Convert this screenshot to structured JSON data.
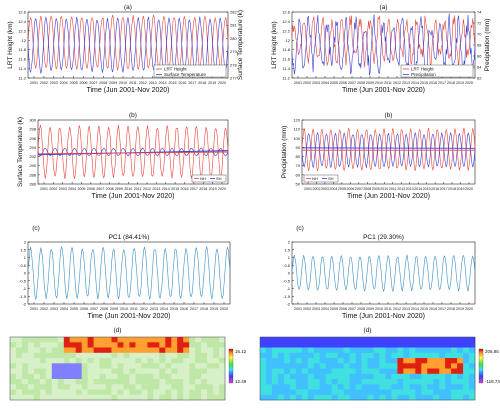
{
  "chart_data": [
    {
      "panel": "(a)",
      "type": "line",
      "title": "(a)",
      "xlabel": "Time (Jun 2001-Nov 2020)",
      "ylabel": "LRT Height (km)",
      "ylabel_right": "Surface Temperature (k)",
      "x_ticks": [
        "2001",
        "2002",
        "2003",
        "2004",
        "2005",
        "2006",
        "2007",
        "2008",
        "2009",
        "2010",
        "2011",
        "2012",
        "2013",
        "2014",
        "2015",
        "2016",
        "2017",
        "2018",
        "2019",
        "2020"
      ],
      "ylim": [
        11.2,
        12.6
      ],
      "y_ticks": [
        "11.2",
        "11.4",
        "11.6",
        "11.8",
        "12",
        "12.2",
        "12.4",
        "12.6"
      ],
      "ylim_right": [
        277,
        282
      ],
      "y_ticks_right": [
        "277",
        "278",
        "279",
        "280",
        "281",
        "282"
      ],
      "legend": [
        "LRT Height",
        "Surface Temperature"
      ],
      "legend_position": "bottom-right",
      "series": [
        {
          "name": "LRT Height",
          "color": "#e8443a",
          "axis": "left",
          "pattern": "annual cycle",
          "mean": 11.95,
          "amplitude": 0.55
        },
        {
          "name": "Surface Temperature",
          "color": "#3b3bd6",
          "axis": "right",
          "pattern": "annual cycle",
          "mean": 279.5,
          "amplitude": 2.0
        }
      ]
    },
    {
      "panel": "(a)",
      "type": "line",
      "title": "(a)",
      "xlabel": "Time (Jun 2001-Nov 2020)",
      "ylabel": "LRT Height (km)",
      "ylabel_right": "Precipitation (mm)",
      "x_ticks": [
        "2001",
        "2002",
        "2003",
        "2004",
        "2005",
        "2006",
        "2007",
        "2008",
        "2009",
        "2010",
        "2011",
        "2012",
        "2013",
        "2014",
        "2015",
        "2016",
        "2017",
        "2018",
        "2019",
        "2020"
      ],
      "ylim": [
        11.2,
        12.6
      ],
      "y_ticks": [
        "11.2",
        "11.4",
        "11.6",
        "11.8",
        "12",
        "12.2",
        "12.4",
        "12.6"
      ],
      "ylim_right": [
        62,
        74
      ],
      "y_ticks_right": [
        "62",
        "64",
        "66",
        "68",
        "70",
        "72",
        "74"
      ],
      "legend": [
        "LRT Height",
        "Precipitation"
      ],
      "legend_position": "bottom-right",
      "series": [
        {
          "name": "LRT Height",
          "color": "#e8443a",
          "axis": "left",
          "pattern": "irregular cycle",
          "mean": 12.0,
          "amplitude": 0.4
        },
        {
          "name": "Precipitation",
          "color": "#3b3bd6",
          "axis": "right",
          "pattern": "irregular cycle",
          "mean": 68,
          "amplitude": 4
        }
      ]
    },
    {
      "panel": "(b)",
      "type": "line",
      "title": "(b)",
      "xlabel": "Time (Jun 2001-Nov 2020)",
      "ylabel": "Surface Temperature (k)",
      "x_ticks": [
        "2001",
        "2002",
        "2003",
        "2004",
        "2005",
        "2006",
        "2007",
        "2008",
        "2009",
        "2010",
        "2011",
        "2012",
        "2013",
        "2014",
        "2015",
        "2016",
        "2017",
        "2018",
        "2019",
        "2020"
      ],
      "ylim": [
        286,
        300
      ],
      "y_ticks": [
        "286",
        "288",
        "290",
        "292",
        "294",
        "296",
        "298",
        "300"
      ],
      "legend": [
        "NH",
        "SH"
      ],
      "legend_position": "bottom-right",
      "series": [
        {
          "name": "NH",
          "color": "#e8443a",
          "pattern": "annual cycle",
          "mean": 293,
          "amplitude": 5.5
        },
        {
          "name": "SH",
          "color": "#3b3bd6",
          "pattern": "annual cycle",
          "mean": 293,
          "amplitude": 0.8
        }
      ],
      "trend_lines": [
        {
          "color": "#3b3bd6",
          "start": 292.4,
          "end": 293.3
        },
        {
          "color": "#e8443a",
          "start": 292.6,
          "end": 293.0
        }
      ]
    },
    {
      "panel": "(b)",
      "type": "line",
      "title": "(b)",
      "xlabel": "Time (Jun 2001-Nov 2020)",
      "ylabel": "Precipitation (mm)",
      "x_ticks": [
        "2001",
        "2002",
        "2003",
        "2004",
        "2005",
        "2006",
        "2007",
        "2008",
        "2009",
        "2010",
        "2011",
        "2012",
        "2013",
        "2014",
        "2015",
        "2016",
        "2017",
        "2018",
        "2019",
        "2020"
      ],
      "ylim": [
        50,
        120
      ],
      "y_ticks": [
        "50",
        "60",
        "70",
        "80",
        "90",
        "100",
        "110",
        "120"
      ],
      "legend": [
        "NH",
        "SH"
      ],
      "legend_position": "bottom-left",
      "series": [
        {
          "name": "NH",
          "color": "#e8443a",
          "pattern": "annual cycle",
          "mean": 88,
          "amplitude": 22
        },
        {
          "name": "SH",
          "color": "#3b3bd6",
          "pattern": "annual cycle",
          "mean": 87,
          "amplitude": 18
        }
      ],
      "trend_lines": [
        {
          "color": "#3b3bd6",
          "start": 89.5,
          "end": 89.0
        },
        {
          "color": "#e8443a",
          "start": 87.0,
          "end": 87.0
        }
      ]
    },
    {
      "panel": "(c)",
      "type": "line",
      "title": "PC1 (84.41%)",
      "label": "(c)",
      "xlabel": "Time (Jun 2001-Nov 2020)",
      "x_ticks": [
        "2001",
        "2002",
        "2003",
        "2004",
        "2005",
        "2006",
        "2007",
        "2008",
        "2009",
        "2010",
        "2011",
        "2012",
        "2013",
        "2014",
        "2015",
        "2016",
        "2017",
        "2018",
        "2019",
        "2020"
      ],
      "ylim": [
        -2,
        2
      ],
      "y_ticks": [
        "-2",
        "-1.5",
        "-1",
        "-0.5",
        "0",
        "0.5",
        "1",
        "1.5",
        "2"
      ],
      "series": [
        {
          "color": "#3d8fc4",
          "pattern": "annual cycle",
          "mean": 0,
          "amplitude": 1.6
        }
      ]
    },
    {
      "panel": "(c)",
      "type": "line",
      "title": "PC1 (29.30%)",
      "label": "(c)",
      "xlabel": "Time (Jun 2001-Nov 2020)",
      "x_ticks": [
        "2001",
        "2002",
        "2003",
        "2004",
        "2005",
        "2006",
        "2007",
        "2008",
        "2009",
        "2010",
        "2011",
        "2012",
        "2013",
        "2014",
        "2015",
        "2016",
        "2017",
        "2018",
        "2019",
        "2020"
      ],
      "ylim": [
        -2,
        2
      ],
      "y_ticks": [
        "-2",
        "-1.5",
        "-1",
        "-0.5",
        "0",
        "0.5",
        "1",
        "1.5",
        "2"
      ],
      "series": [
        {
          "color": "#3d8fc4",
          "pattern": "annual cycle",
          "mean": 0,
          "amplitude": 1.1
        }
      ]
    },
    {
      "panel": "(d)",
      "type": "heatmap",
      "label": "(d)",
      "colorbar_max": "16.12",
      "colorbar_min": "12.49"
    },
    {
      "panel": "(d)",
      "type": "heatmap",
      "label": "(d)",
      "colorbar_max": "206.85",
      "colorbar_min": "-118.74"
    }
  ]
}
